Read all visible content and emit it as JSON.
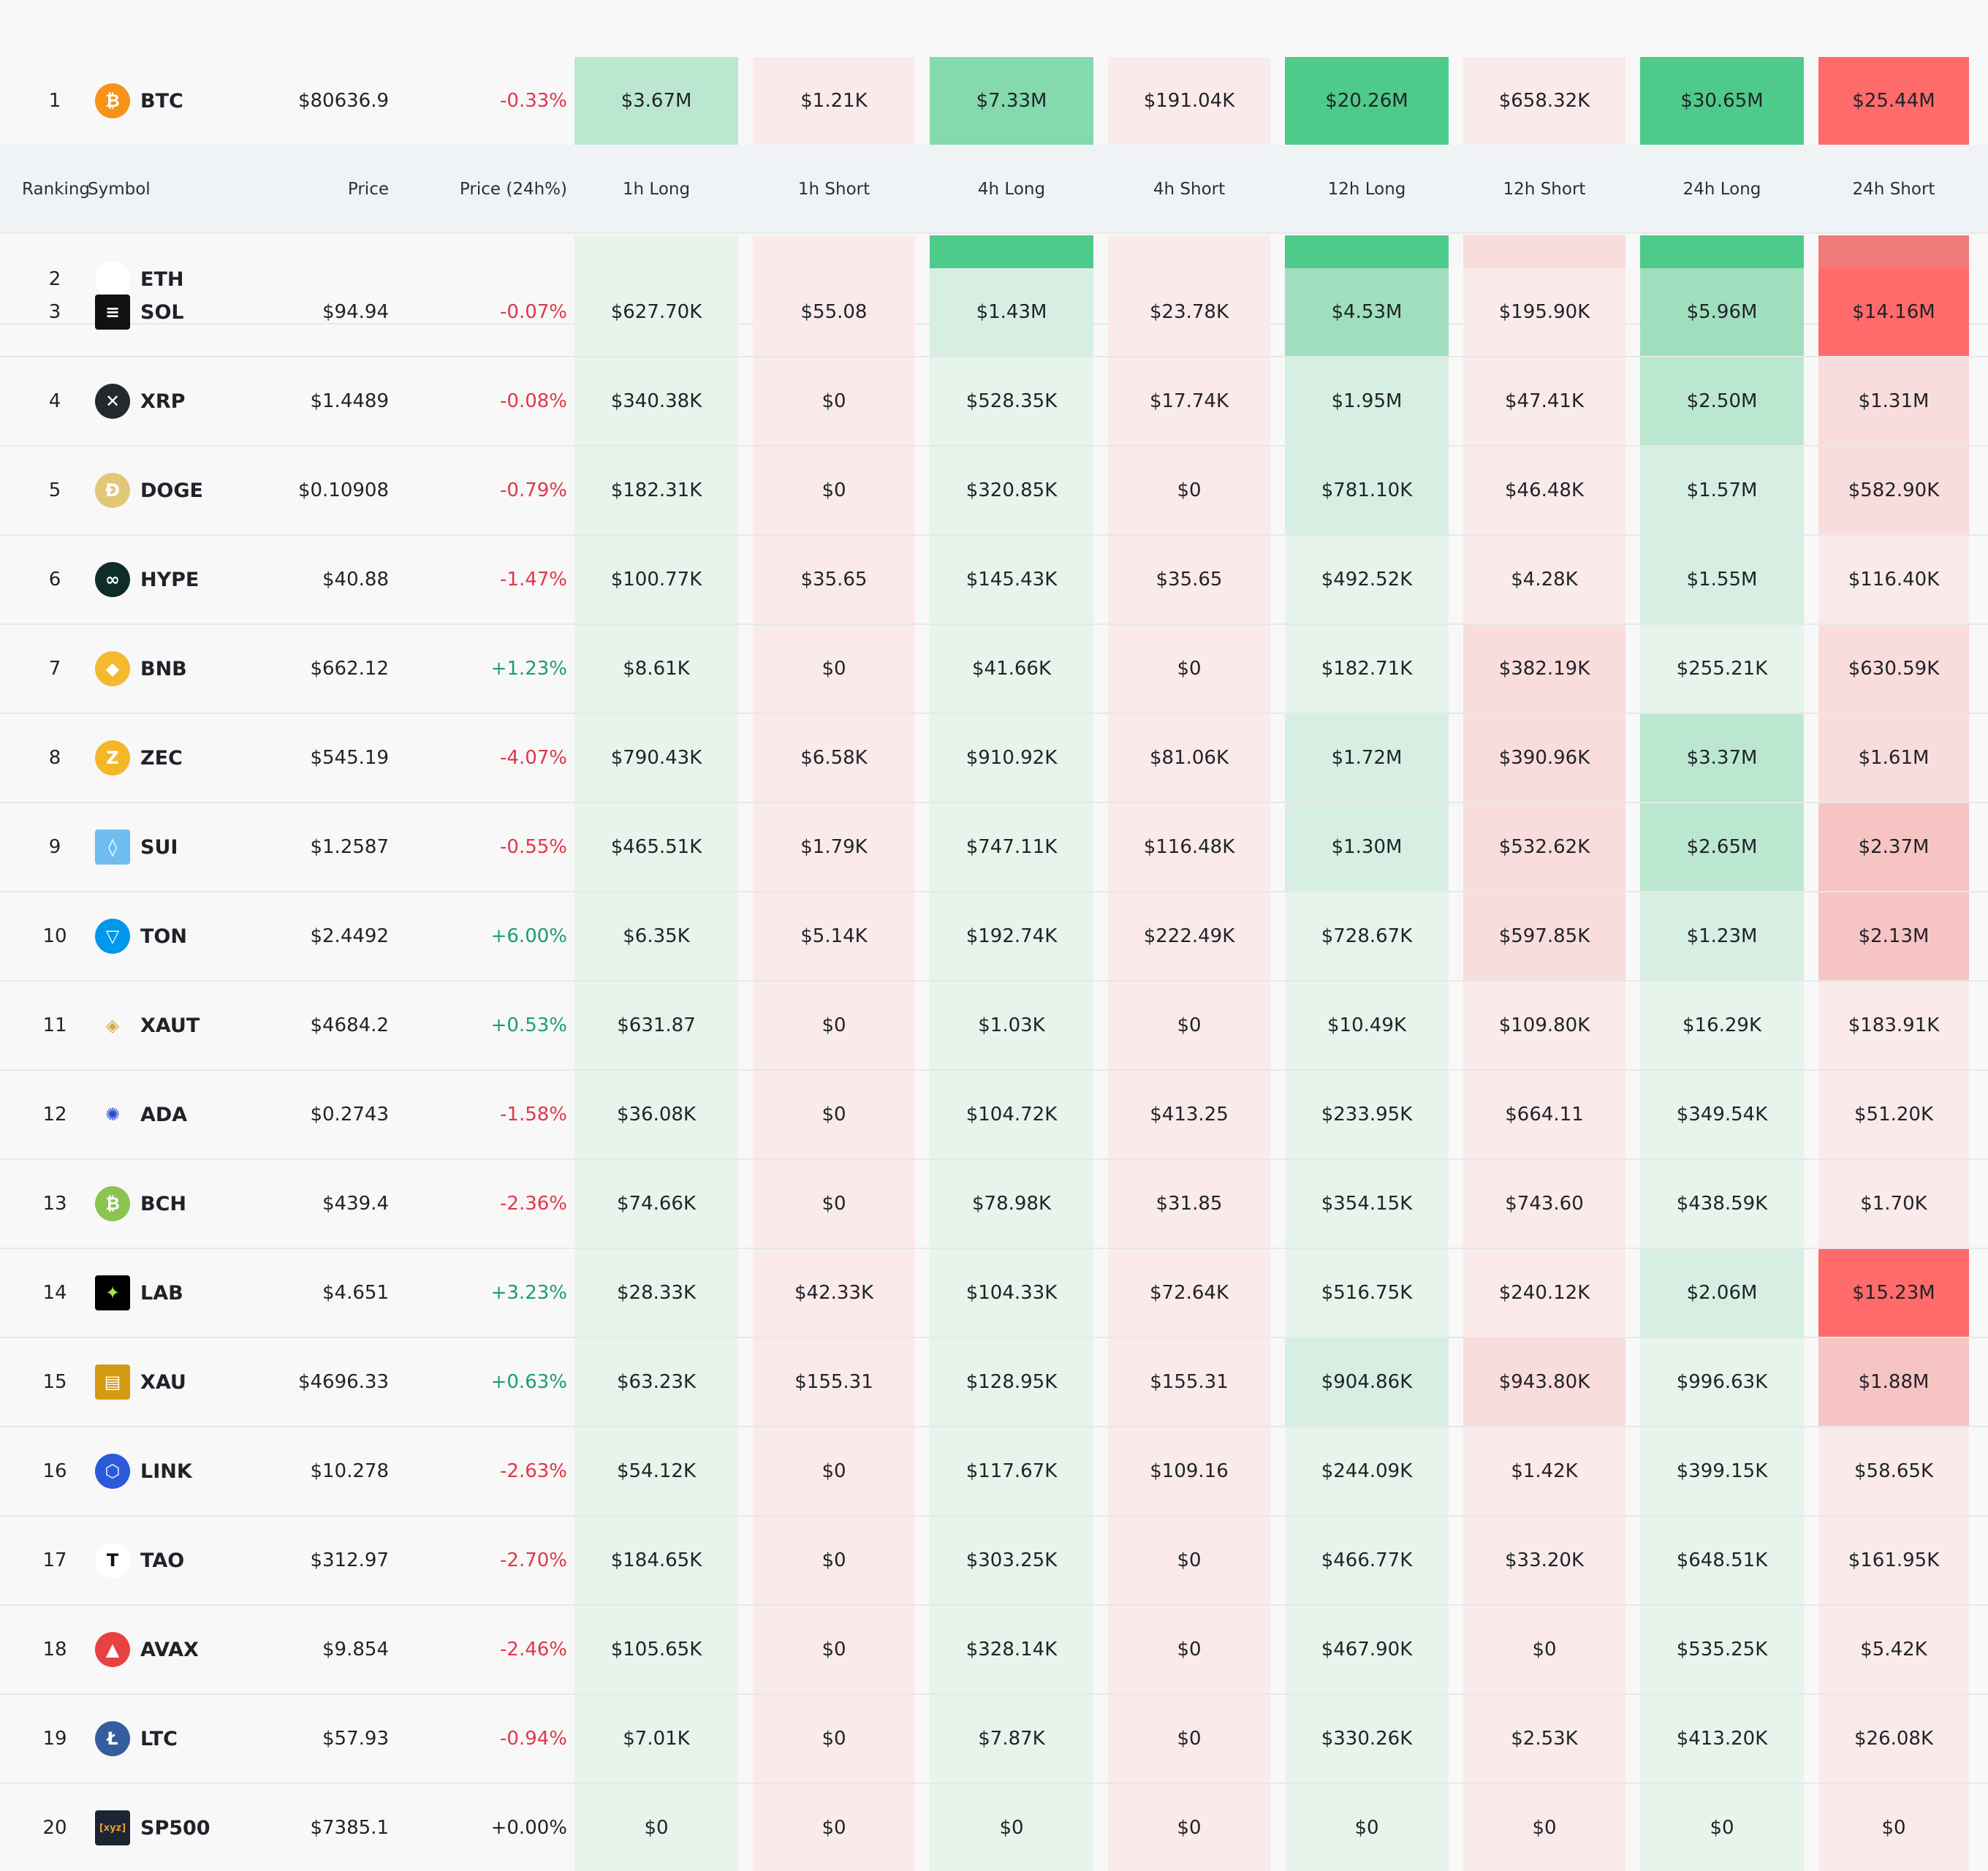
{
  "header": {
    "ranking": "Ranking",
    "symbol": "Symbol",
    "price": "Price",
    "price_change": "Price (24h%)",
    "cols": [
      "1h Long",
      "1h Short",
      "4h Long",
      "4h Short",
      "12h Long",
      "12h Short",
      "24h Long",
      "24h Short"
    ]
  },
  "colors": {
    "positive": "#1aa06a",
    "negative": "#e0374b",
    "long_shades": [
      "#e6f4ec",
      "#d6efe2",
      "#bbe7d0",
      "#9fdfbd",
      "#84d9ad",
      "#4ecb8a"
    ],
    "short_shades": [
      "#fbeaea",
      "#f9dcdc",
      "#f7c4c4",
      "#f49c9c",
      "#f07a7a",
      "#ff6b6b"
    ]
  },
  "rows": [
    {
      "rank": "1",
      "symbol": "BTC",
      "icon": "btc-icon",
      "price": "$80636.9",
      "change": "-0.33%",
      "dir": "down",
      "liq": [
        {
          "v": "$3.67M",
          "s": 2
        },
        {
          "v": "$1.21K",
          "s": 0
        },
        {
          "v": "$7.33M",
          "s": 4
        },
        {
          "v": "$191.04K",
          "s": 0
        },
        {
          "v": "$20.26M",
          "s": 5
        },
        {
          "v": "$658.32K",
          "s": 0
        },
        {
          "v": "$30.65M",
          "s": 5
        },
        {
          "v": "$25.44M",
          "s": 5
        }
      ]
    },
    {
      "rank": "2",
      "symbol": "ETH",
      "icon": "eth-icon",
      "price": "",
      "change": "",
      "dir": "flat",
      "liq": [
        {
          "v": "",
          "s": 0
        },
        {
          "v": "",
          "s": 0
        },
        {
          "v": "",
          "s": 5
        },
        {
          "v": "",
          "s": 0
        },
        {
          "v": "",
          "s": 5
        },
        {
          "v": "",
          "s": 1
        },
        {
          "v": "",
          "s": 5
        },
        {
          "v": "",
          "s": 4
        }
      ]
    },
    {
      "rank": "3",
      "symbol": "SOL",
      "icon": "sol-icon",
      "price": "$94.94",
      "change": "-0.07%",
      "dir": "down",
      "liq": [
        {
          "v": "$627.70K",
          "s": 0
        },
        {
          "v": "$55.08",
          "s": 0
        },
        {
          "v": "$1.43M",
          "s": 1
        },
        {
          "v": "$23.78K",
          "s": 0
        },
        {
          "v": "$4.53M",
          "s": 3
        },
        {
          "v": "$195.90K",
          "s": 0
        },
        {
          "v": "$5.96M",
          "s": 3
        },
        {
          "v": "$14.16M",
          "s": 5
        }
      ]
    },
    {
      "rank": "4",
      "symbol": "XRP",
      "icon": "xrp-icon",
      "price": "$1.4489",
      "change": "-0.08%",
      "dir": "down",
      "liq": [
        {
          "v": "$340.38K",
          "s": 0
        },
        {
          "v": "$0",
          "s": 0
        },
        {
          "v": "$528.35K",
          "s": 0
        },
        {
          "v": "$17.74K",
          "s": 0
        },
        {
          "v": "$1.95M",
          "s": 1
        },
        {
          "v": "$47.41K",
          "s": 0
        },
        {
          "v": "$2.50M",
          "s": 2
        },
        {
          "v": "$1.31M",
          "s": 1
        }
      ]
    },
    {
      "rank": "5",
      "symbol": "DOGE",
      "icon": "doge-icon",
      "price": "$0.10908",
      "change": "-0.79%",
      "dir": "down",
      "liq": [
        {
          "v": "$182.31K",
          "s": 0
        },
        {
          "v": "$0",
          "s": 0
        },
        {
          "v": "$320.85K",
          "s": 0
        },
        {
          "v": "$0",
          "s": 0
        },
        {
          "v": "$781.10K",
          "s": 1
        },
        {
          "v": "$46.48K",
          "s": 0
        },
        {
          "v": "$1.57M",
          "s": 1
        },
        {
          "v": "$582.90K",
          "s": 1
        }
      ]
    },
    {
      "rank": "6",
      "symbol": "HYPE",
      "icon": "hype-icon",
      "price": "$40.88",
      "change": "-1.47%",
      "dir": "down",
      "liq": [
        {
          "v": "$100.77K",
          "s": 0
        },
        {
          "v": "$35.65",
          "s": 0
        },
        {
          "v": "$145.43K",
          "s": 0
        },
        {
          "v": "$35.65",
          "s": 0
        },
        {
          "v": "$492.52K",
          "s": 0
        },
        {
          "v": "$4.28K",
          "s": 0
        },
        {
          "v": "$1.55M",
          "s": 1
        },
        {
          "v": "$116.40K",
          "s": 0
        }
      ]
    },
    {
      "rank": "7",
      "symbol": "BNB",
      "icon": "bnb-icon",
      "price": "$662.12",
      "change": "+1.23%",
      "dir": "up",
      "liq": [
        {
          "v": "$8.61K",
          "s": 0
        },
        {
          "v": "$0",
          "s": 0
        },
        {
          "v": "$41.66K",
          "s": 0
        },
        {
          "v": "$0",
          "s": 0
        },
        {
          "v": "$182.71K",
          "s": 0
        },
        {
          "v": "$382.19K",
          "s": 1
        },
        {
          "v": "$255.21K",
          "s": 0
        },
        {
          "v": "$630.59K",
          "s": 1
        }
      ]
    },
    {
      "rank": "8",
      "symbol": "ZEC",
      "icon": "zec-icon",
      "price": "$545.19",
      "change": "-4.07%",
      "dir": "down",
      "liq": [
        {
          "v": "$790.43K",
          "s": 0
        },
        {
          "v": "$6.58K",
          "s": 0
        },
        {
          "v": "$910.92K",
          "s": 0
        },
        {
          "v": "$81.06K",
          "s": 0
        },
        {
          "v": "$1.72M",
          "s": 1
        },
        {
          "v": "$390.96K",
          "s": 1
        },
        {
          "v": "$3.37M",
          "s": 2
        },
        {
          "v": "$1.61M",
          "s": 1
        }
      ]
    },
    {
      "rank": "9",
      "symbol": "SUI",
      "icon": "sui-icon",
      "price": "$1.2587",
      "change": "-0.55%",
      "dir": "down",
      "liq": [
        {
          "v": "$465.51K",
          "s": 0
        },
        {
          "v": "$1.79K",
          "s": 0
        },
        {
          "v": "$747.11K",
          "s": 0
        },
        {
          "v": "$116.48K",
          "s": 0
        },
        {
          "v": "$1.30M",
          "s": 1
        },
        {
          "v": "$532.62K",
          "s": 1
        },
        {
          "v": "$2.65M",
          "s": 2
        },
        {
          "v": "$2.37M",
          "s": 2
        }
      ]
    },
    {
      "rank": "10",
      "symbol": "TON",
      "icon": "ton-icon",
      "price": "$2.4492",
      "change": "+6.00%",
      "dir": "up",
      "liq": [
        {
          "v": "$6.35K",
          "s": 0
        },
        {
          "v": "$5.14K",
          "s": 0
        },
        {
          "v": "$192.74K",
          "s": 0
        },
        {
          "v": "$222.49K",
          "s": 0
        },
        {
          "v": "$728.67K",
          "s": 0
        },
        {
          "v": "$597.85K",
          "s": 1
        },
        {
          "v": "$1.23M",
          "s": 1
        },
        {
          "v": "$2.13M",
          "s": 2
        }
      ]
    },
    {
      "rank": "11",
      "symbol": "XAUT",
      "icon": "xaut-icon",
      "price": "$4684.2",
      "change": "+0.53%",
      "dir": "up",
      "liq": [
        {
          "v": "$631.87",
          "s": 0
        },
        {
          "v": "$0",
          "s": 0
        },
        {
          "v": "$1.03K",
          "s": 0
        },
        {
          "v": "$0",
          "s": 0
        },
        {
          "v": "$10.49K",
          "s": 0
        },
        {
          "v": "$109.80K",
          "s": 0
        },
        {
          "v": "$16.29K",
          "s": 0
        },
        {
          "v": "$183.91K",
          "s": 0
        }
      ]
    },
    {
      "rank": "12",
      "symbol": "ADA",
      "icon": "ada-icon",
      "price": "$0.2743",
      "change": "-1.58%",
      "dir": "down",
      "liq": [
        {
          "v": "$36.08K",
          "s": 0
        },
        {
          "v": "$0",
          "s": 0
        },
        {
          "v": "$104.72K",
          "s": 0
        },
        {
          "v": "$413.25",
          "s": 0
        },
        {
          "v": "$233.95K",
          "s": 0
        },
        {
          "v": "$664.11",
          "s": 0
        },
        {
          "v": "$349.54K",
          "s": 0
        },
        {
          "v": "$51.20K",
          "s": 0
        }
      ]
    },
    {
      "rank": "13",
      "symbol": "BCH",
      "icon": "bch-icon",
      "price": "$439.4",
      "change": "-2.36%",
      "dir": "down",
      "liq": [
        {
          "v": "$74.66K",
          "s": 0
        },
        {
          "v": "$0",
          "s": 0
        },
        {
          "v": "$78.98K",
          "s": 0
        },
        {
          "v": "$31.85",
          "s": 0
        },
        {
          "v": "$354.15K",
          "s": 0
        },
        {
          "v": "$743.60",
          "s": 0
        },
        {
          "v": "$438.59K",
          "s": 0
        },
        {
          "v": "$1.70K",
          "s": 0
        }
      ]
    },
    {
      "rank": "14",
      "symbol": "LAB",
      "icon": "lab-icon",
      "price": "$4.651",
      "change": "+3.23%",
      "dir": "up",
      "liq": [
        {
          "v": "$28.33K",
          "s": 0
        },
        {
          "v": "$42.33K",
          "s": 0
        },
        {
          "v": "$104.33K",
          "s": 0
        },
        {
          "v": "$72.64K",
          "s": 0
        },
        {
          "v": "$516.75K",
          "s": 0
        },
        {
          "v": "$240.12K",
          "s": 0
        },
        {
          "v": "$2.06M",
          "s": 1
        },
        {
          "v": "$15.23M",
          "s": 5
        }
      ]
    },
    {
      "rank": "15",
      "symbol": "XAU",
      "icon": "xau-icon",
      "price": "$4696.33",
      "change": "+0.63%",
      "dir": "up",
      "liq": [
        {
          "v": "$63.23K",
          "s": 0
        },
        {
          "v": "$155.31",
          "s": 0
        },
        {
          "v": "$128.95K",
          "s": 0
        },
        {
          "v": "$155.31",
          "s": 0
        },
        {
          "v": "$904.86K",
          "s": 1
        },
        {
          "v": "$943.80K",
          "s": 1
        },
        {
          "v": "$996.63K",
          "s": 0
        },
        {
          "v": "$1.88M",
          "s": 2
        }
      ]
    },
    {
      "rank": "16",
      "symbol": "LINK",
      "icon": "link-icon",
      "price": "$10.278",
      "change": "-2.63%",
      "dir": "down",
      "liq": [
        {
          "v": "$54.12K",
          "s": 0
        },
        {
          "v": "$0",
          "s": 0
        },
        {
          "v": "$117.67K",
          "s": 0
        },
        {
          "v": "$109.16",
          "s": 0
        },
        {
          "v": "$244.09K",
          "s": 0
        },
        {
          "v": "$1.42K",
          "s": 0
        },
        {
          "v": "$399.15K",
          "s": 0
        },
        {
          "v": "$58.65K",
          "s": 0
        }
      ]
    },
    {
      "rank": "17",
      "symbol": "TAO",
      "icon": "tao-icon",
      "price": "$312.97",
      "change": "-2.70%",
      "dir": "down",
      "liq": [
        {
          "v": "$184.65K",
          "s": 0
        },
        {
          "v": "$0",
          "s": 0
        },
        {
          "v": "$303.25K",
          "s": 0
        },
        {
          "v": "$0",
          "s": 0
        },
        {
          "v": "$466.77K",
          "s": 0
        },
        {
          "v": "$33.20K",
          "s": 0
        },
        {
          "v": "$648.51K",
          "s": 0
        },
        {
          "v": "$161.95K",
          "s": 0
        }
      ]
    },
    {
      "rank": "18",
      "symbol": "AVAX",
      "icon": "avax-icon",
      "price": "$9.854",
      "change": "-2.46%",
      "dir": "down",
      "liq": [
        {
          "v": "$105.65K",
          "s": 0
        },
        {
          "v": "$0",
          "s": 0
        },
        {
          "v": "$328.14K",
          "s": 0
        },
        {
          "v": "$0",
          "s": 0
        },
        {
          "v": "$467.90K",
          "s": 0
        },
        {
          "v": "$0",
          "s": 0
        },
        {
          "v": "$535.25K",
          "s": 0
        },
        {
          "v": "$5.42K",
          "s": 0
        }
      ]
    },
    {
      "rank": "19",
      "symbol": "LTC",
      "icon": "ltc-icon",
      "price": "$57.93",
      "change": "-0.94%",
      "dir": "down",
      "liq": [
        {
          "v": "$7.01K",
          "s": 0
        },
        {
          "v": "$0",
          "s": 0
        },
        {
          "v": "$7.87K",
          "s": 0
        },
        {
          "v": "$0",
          "s": 0
        },
        {
          "v": "$330.26K",
          "s": 0
        },
        {
          "v": "$2.53K",
          "s": 0
        },
        {
          "v": "$413.20K",
          "s": 0
        },
        {
          "v": "$26.08K",
          "s": 0
        }
      ]
    },
    {
      "rank": "20",
      "symbol": "SP500",
      "icon": "sp500-icon",
      "price": "$7385.1",
      "change": "+0.00%",
      "dir": "flat",
      "liq": [
        {
          "v": "$0",
          "s": 0
        },
        {
          "v": "$0",
          "s": 0
        },
        {
          "v": "$0",
          "s": 0
        },
        {
          "v": "$0",
          "s": 0
        },
        {
          "v": "$0",
          "s": 0
        },
        {
          "v": "$0",
          "s": 0
        },
        {
          "v": "$0",
          "s": 0
        },
        {
          "v": "$0",
          "s": 0
        }
      ]
    }
  ]
}
